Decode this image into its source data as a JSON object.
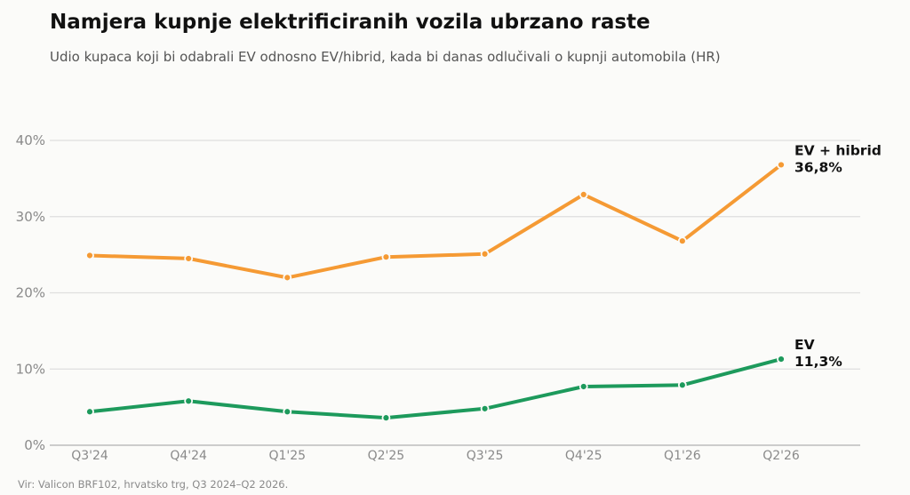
{
  "title": "Namjera kupnje elektrificiranih vozila ubrzano raste",
  "subtitle": "Udio kupaca koji bi odabrali EV odnosno EV/hibrid, kada bi danas odlučivali o kupnji automobila (HR)",
  "source": "Vir: Valicon BRF102, hrvatsko trg, Q3 2024–Q2 2026.",
  "chart_data": {
    "type": "line",
    "title": "Namjera kupnje elektrificiranih vozila ubrzano raste",
    "subtitle": "Udio kupaca koji bi odabrali EV odnosno EV/hibrid, kada bi danas odlučivali o kupnji automobila (HR)",
    "xlabel": "",
    "ylabel": "",
    "categories": [
      "Q3'24",
      "Q4'24",
      "Q1'25",
      "Q2'25",
      "Q3'25",
      "Q4'25",
      "Q1'26",
      "Q2'26"
    ],
    "ylim": [
      0,
      40
    ],
    "yticks": [
      0,
      10,
      20,
      30,
      40
    ],
    "ytick_labels": [
      "0%",
      "10%",
      "20%",
      "30%",
      "40%"
    ],
    "grid": true,
    "series": [
      {
        "name": "EV + hibrid",
        "color": "#f59a34",
        "values": [
          24.9,
          24.5,
          22.0,
          24.7,
          25.1,
          32.9,
          26.8,
          36.8
        ],
        "end_label": "36,8%"
      },
      {
        "name": "EV",
        "color": "#1d9a5c",
        "values": [
          4.4,
          5.8,
          4.4,
          3.6,
          4.8,
          7.7,
          7.9,
          11.3
        ],
        "end_label": "11,3%"
      }
    ]
  }
}
